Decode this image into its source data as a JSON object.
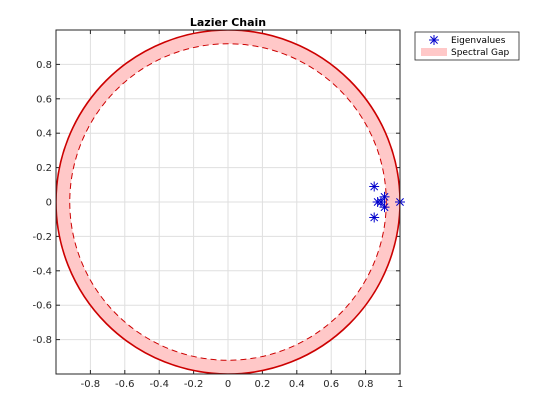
{
  "chart_data": {
    "type": "scatter",
    "title": "Lazier Chain",
    "xlabel": "",
    "ylabel": "",
    "xlim": [
      -1,
      1
    ],
    "ylim": [
      -1,
      1
    ],
    "x_ticks": [
      "-0.8",
      "-0.6",
      "-0.4",
      "-0.2",
      "0",
      "0.2",
      "0.4",
      "0.6",
      "0.8",
      "1"
    ],
    "y_ticks": [
      "-0.8",
      "-0.6",
      "-0.4",
      "-0.2",
      "0",
      "0.2",
      "0.4",
      "0.6",
      "0.8"
    ],
    "grid": true,
    "legend_position": "outside top-right",
    "series": [
      {
        "name": "Eigenvalues",
        "marker": "asterisk",
        "color": "#0000cc",
        "points": [
          {
            "x": 1.0,
            "y": 0.0
          },
          {
            "x": 0.91,
            "y": 0.03
          },
          {
            "x": 0.91,
            "y": -0.03
          },
          {
            "x": 0.89,
            "y": 0.0
          },
          {
            "x": 0.87,
            "y": 0.0
          },
          {
            "x": 0.85,
            "y": 0.09
          },
          {
            "x": 0.85,
            "y": -0.09
          }
        ]
      },
      {
        "name": "Spectral Gap",
        "kind": "annulus",
        "outer_radius": 1.0,
        "inner_radius": 0.92,
        "fill_color": "#ffc8c8",
        "edge_color": "#cc0000"
      }
    ]
  }
}
